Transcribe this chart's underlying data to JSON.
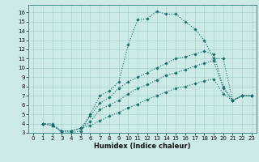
{
  "xlabel": "Humidex (Indice chaleur)",
  "xlim": [
    -0.5,
    23.5
  ],
  "ylim": [
    3,
    16.8
  ],
  "yticks": [
    3,
    4,
    5,
    6,
    7,
    8,
    9,
    10,
    11,
    12,
    13,
    14,
    15,
    16
  ],
  "xticks": [
    0,
    1,
    2,
    3,
    4,
    5,
    6,
    7,
    8,
    9,
    10,
    11,
    12,
    13,
    14,
    15,
    16,
    17,
    18,
    19,
    20,
    21,
    22,
    23
  ],
  "bg_color": "#cceae8",
  "grid_color": "#aad4d0",
  "line_color": "#1a6b6b",
  "lines": [
    {
      "x": [
        1,
        2,
        3,
        4,
        5,
        6,
        7,
        8,
        9,
        10,
        11,
        12,
        13,
        14,
        15,
        16,
        17,
        18,
        19,
        20,
        21,
        22,
        23
      ],
      "y": [
        4.0,
        4.0,
        3.0,
        3.0,
        3.2,
        5.0,
        7.0,
        7.5,
        8.5,
        12.5,
        15.2,
        15.3,
        16.1,
        15.8,
        15.8,
        15.0,
        14.2,
        13.0,
        11.0,
        11.0,
        6.5,
        7.0,
        7.0
      ]
    },
    {
      "x": [
        1,
        2,
        3,
        4,
        5,
        6,
        7,
        8,
        9,
        10,
        11,
        12,
        13,
        14,
        15,
        16,
        17,
        18,
        19,
        20,
        21,
        22,
        23
      ],
      "y": [
        4.0,
        3.8,
        3.2,
        3.2,
        3.5,
        4.8,
        6.2,
        6.8,
        7.8,
        8.5,
        9.0,
        9.5,
        10.0,
        10.5,
        11.0,
        11.2,
        11.5,
        11.8,
        11.5,
        8.0,
        6.5,
        7.0,
        7.0
      ]
    },
    {
      "x": [
        1,
        2,
        3,
        4,
        5,
        6,
        7,
        8,
        9,
        10,
        11,
        12,
        13,
        14,
        15,
        16,
        17,
        18,
        19,
        20,
        21,
        22,
        23
      ],
      "y": [
        4.0,
        3.8,
        3.2,
        3.2,
        3.5,
        4.2,
        5.5,
        6.0,
        6.5,
        7.2,
        7.8,
        8.2,
        8.7,
        9.2,
        9.5,
        9.8,
        10.2,
        10.5,
        10.8,
        7.8,
        6.5,
        7.0,
        7.0
      ]
    },
    {
      "x": [
        1,
        2,
        3,
        4,
        5,
        6,
        7,
        8,
        9,
        10,
        11,
        12,
        13,
        14,
        15,
        16,
        17,
        18,
        19,
        20,
        21,
        22,
        23
      ],
      "y": [
        4.0,
        3.8,
        3.2,
        3.2,
        3.5,
        3.8,
        4.3,
        4.8,
        5.2,
        5.7,
        6.1,
        6.6,
        7.0,
        7.4,
        7.8,
        8.0,
        8.3,
        8.6,
        8.8,
        7.2,
        6.5,
        7.0,
        7.0
      ]
    }
  ]
}
